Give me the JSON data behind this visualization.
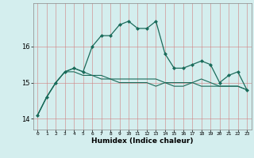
{
  "xlabel": "Humidex (Indice chaleur)",
  "x": [
    0,
    1,
    2,
    3,
    4,
    5,
    6,
    7,
    8,
    9,
    10,
    11,
    12,
    13,
    14,
    15,
    16,
    17,
    18,
    19,
    20,
    21,
    22,
    23
  ],
  "line1": [
    14.1,
    14.6,
    15.0,
    15.3,
    15.4,
    15.3,
    16.0,
    16.3,
    16.3,
    16.6,
    16.7,
    16.5,
    16.5,
    16.7,
    15.8,
    15.4,
    15.4,
    15.5,
    15.6,
    15.5,
    15.0,
    15.2,
    15.3,
    14.8
  ],
  "line2": [
    14.1,
    14.6,
    15.0,
    15.3,
    15.3,
    15.2,
    15.2,
    15.1,
    15.1,
    15.0,
    15.0,
    15.0,
    15.0,
    14.9,
    15.0,
    14.9,
    14.9,
    15.0,
    15.1,
    15.0,
    14.9,
    14.9,
    14.9,
    14.8
  ],
  "line3": [
    14.1,
    14.6,
    15.0,
    15.3,
    15.4,
    15.3,
    15.2,
    15.2,
    15.1,
    15.1,
    15.1,
    15.1,
    15.1,
    15.1,
    15.0,
    15.0,
    15.0,
    15.0,
    14.9,
    14.9,
    14.9,
    14.9,
    14.9,
    14.8
  ],
  "line_color": "#1a6b5a",
  "bg_color": "#d4eeee",
  "ylim": [
    13.7,
    17.2
  ],
  "yticks": [
    14,
    15,
    16
  ],
  "xlim": [
    -0.5,
    23.5
  ]
}
